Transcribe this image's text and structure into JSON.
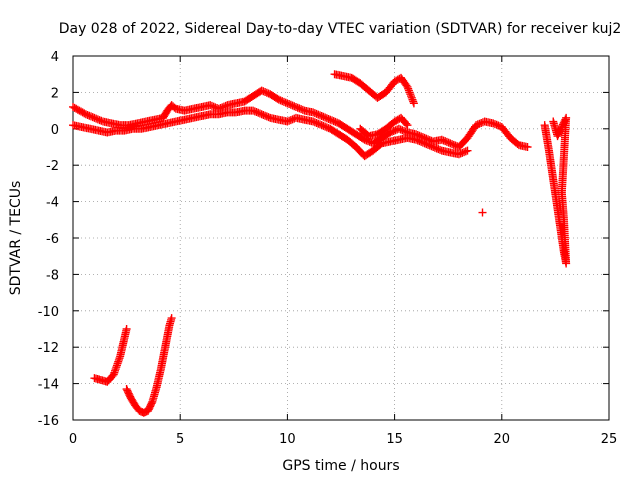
{
  "chart_data": {
    "type": "scatter",
    "title": "Day 028 of 2022, Sidereal Day-to-day VTEC variation (SDTVAR) for receiver kuj2",
    "xlabel": "GPS time / hours",
    "ylabel": "SDTVAR / TECUs",
    "xlim": [
      0,
      25
    ],
    "ylim": [
      -16,
      4
    ],
    "xticks": [
      0,
      5,
      10,
      15,
      20,
      25
    ],
    "yticks": [
      -16,
      -14,
      -12,
      -10,
      -8,
      -6,
      -4,
      -2,
      0,
      2,
      4
    ],
    "grid": true,
    "series_color": "#ff0000",
    "marker": "plus",
    "series": [
      {
        "name": "main-band-upper",
        "points": [
          [
            0.0,
            1.2
          ],
          [
            0.3,
            1.0
          ],
          [
            0.6,
            0.8
          ],
          [
            1.0,
            0.6
          ],
          [
            1.4,
            0.4
          ],
          [
            1.8,
            0.3
          ],
          [
            2.2,
            0.2
          ],
          [
            2.6,
            0.2
          ],
          [
            3.0,
            0.3
          ],
          [
            3.4,
            0.4
          ],
          [
            3.8,
            0.5
          ],
          [
            4.2,
            0.6
          ],
          [
            4.4,
            1.0
          ],
          [
            4.6,
            1.3
          ],
          [
            4.8,
            1.1
          ],
          [
            5.2,
            1.0
          ],
          [
            5.6,
            1.1
          ],
          [
            6.0,
            1.2
          ],
          [
            6.4,
            1.3
          ],
          [
            6.8,
            1.1
          ],
          [
            7.2,
            1.3
          ],
          [
            7.6,
            1.4
          ],
          [
            8.0,
            1.5
          ],
          [
            8.4,
            1.8
          ],
          [
            8.8,
            2.1
          ],
          [
            9.2,
            1.9
          ],
          [
            9.6,
            1.6
          ],
          [
            10.0,
            1.4
          ],
          [
            10.4,
            1.2
          ],
          [
            10.8,
            1.0
          ],
          [
            11.2,
            0.9
          ],
          [
            11.6,
            0.7
          ],
          [
            12.0,
            0.5
          ],
          [
            12.4,
            0.3
          ],
          [
            12.8,
            0.0
          ],
          [
            13.2,
            -0.3
          ],
          [
            13.6,
            -0.6
          ],
          [
            14.0,
            -0.8
          ],
          [
            14.4,
            -0.5
          ],
          [
            14.8,
            -0.2
          ],
          [
            15.2,
            0.0
          ],
          [
            15.6,
            -0.2
          ],
          [
            16.0,
            -0.3
          ],
          [
            16.4,
            -0.5
          ],
          [
            16.8,
            -0.7
          ],
          [
            17.2,
            -0.6
          ],
          [
            17.6,
            -0.8
          ],
          [
            18.0,
            -1.0
          ],
          [
            18.4,
            -0.5
          ],
          [
            18.8,
            0.2
          ],
          [
            19.2,
            0.4
          ],
          [
            19.6,
            0.3
          ],
          [
            20.0,
            0.1
          ],
          [
            20.4,
            -0.5
          ],
          [
            20.8,
            -0.9
          ],
          [
            21.2,
            -1.0
          ]
        ]
      },
      {
        "name": "main-band-lower",
        "points": [
          [
            0.0,
            0.2
          ],
          [
            0.4,
            0.1
          ],
          [
            0.8,
            0.0
          ],
          [
            1.2,
            -0.1
          ],
          [
            1.6,
            -0.2
          ],
          [
            2.0,
            -0.1
          ],
          [
            2.4,
            -0.1
          ],
          [
            2.8,
            0.0
          ],
          [
            3.2,
            0.0
          ],
          [
            3.6,
            0.1
          ],
          [
            4.0,
            0.2
          ],
          [
            4.4,
            0.3
          ],
          [
            4.8,
            0.4
          ],
          [
            5.2,
            0.5
          ],
          [
            5.6,
            0.6
          ],
          [
            6.0,
            0.7
          ],
          [
            6.4,
            0.8
          ],
          [
            6.8,
            0.8
          ],
          [
            7.2,
            0.9
          ],
          [
            7.6,
            0.9
          ],
          [
            8.0,
            1.0
          ],
          [
            8.4,
            1.0
          ],
          [
            8.8,
            0.8
          ],
          [
            9.2,
            0.6
          ],
          [
            9.6,
            0.5
          ],
          [
            10.0,
            0.4
          ],
          [
            10.4,
            0.6
          ],
          [
            10.8,
            0.5
          ],
          [
            11.2,
            0.4
          ],
          [
            11.6,
            0.2
          ],
          [
            12.0,
            0.0
          ],
          [
            12.4,
            -0.3
          ],
          [
            12.8,
            -0.6
          ],
          [
            13.2,
            -1.0
          ],
          [
            13.6,
            -1.5
          ],
          [
            14.0,
            -1.2
          ],
          [
            14.4,
            -0.8
          ],
          [
            14.8,
            -0.7
          ],
          [
            15.2,
            -0.6
          ],
          [
            15.6,
            -0.5
          ],
          [
            16.0,
            -0.6
          ],
          [
            16.4,
            -0.8
          ],
          [
            16.8,
            -1.0
          ],
          [
            17.2,
            -1.2
          ],
          [
            17.6,
            -1.3
          ],
          [
            18.0,
            -1.4
          ],
          [
            18.4,
            -1.2
          ]
        ]
      },
      {
        "name": "high-arc",
        "points": [
          [
            12.2,
            3.0
          ],
          [
            12.6,
            2.9
          ],
          [
            13.0,
            2.8
          ],
          [
            13.4,
            2.5
          ],
          [
            13.8,
            2.1
          ],
          [
            14.2,
            1.7
          ],
          [
            14.6,
            2.0
          ],
          [
            15.0,
            2.6
          ],
          [
            15.3,
            2.8
          ],
          [
            15.6,
            2.3
          ],
          [
            15.9,
            1.4
          ]
        ]
      },
      {
        "name": "mid-arc",
        "points": [
          [
            13.4,
            0.0
          ],
          [
            13.8,
            -0.4
          ],
          [
            14.2,
            -0.3
          ],
          [
            14.6,
            0.0
          ],
          [
            15.0,
            0.4
          ],
          [
            15.3,
            0.6
          ],
          [
            15.6,
            0.2
          ]
        ]
      },
      {
        "name": "isolated-point",
        "points": [
          [
            19.1,
            -4.6
          ]
        ]
      },
      {
        "name": "late-drop",
        "points": [
          [
            22.0,
            0.2
          ],
          [
            22.1,
            -0.5
          ],
          [
            22.2,
            -1.2
          ],
          [
            22.3,
            -2.0
          ],
          [
            22.4,
            -2.8
          ],
          [
            22.5,
            -3.6
          ],
          [
            22.6,
            -4.4
          ],
          [
            22.7,
            -5.2
          ],
          [
            22.8,
            -6.0
          ],
          [
            22.9,
            -6.8
          ],
          [
            23.0,
            -7.4
          ],
          [
            22.9,
            -5.0
          ],
          [
            22.8,
            -3.5
          ],
          [
            23.0,
            0.6
          ],
          [
            22.6,
            -0.4
          ],
          [
            22.4,
            0.4
          ]
        ]
      },
      {
        "name": "low-arc-1",
        "points": [
          [
            1.0,
            -13.7
          ],
          [
            1.3,
            -13.8
          ],
          [
            1.6,
            -13.9
          ],
          [
            1.9,
            -13.5
          ],
          [
            2.2,
            -12.5
          ],
          [
            2.5,
            -11.0
          ]
        ]
      },
      {
        "name": "low-arc-2",
        "points": [
          [
            2.5,
            -14.3
          ],
          [
            2.7,
            -14.8
          ],
          [
            2.9,
            -15.2
          ],
          [
            3.1,
            -15.5
          ],
          [
            3.3,
            -15.6
          ],
          [
            3.5,
            -15.5
          ],
          [
            3.7,
            -15.0
          ],
          [
            3.9,
            -14.2
          ],
          [
            4.1,
            -13.2
          ],
          [
            4.3,
            -12.0
          ],
          [
            4.5,
            -10.8
          ],
          [
            4.6,
            -10.4
          ]
        ]
      }
    ]
  }
}
